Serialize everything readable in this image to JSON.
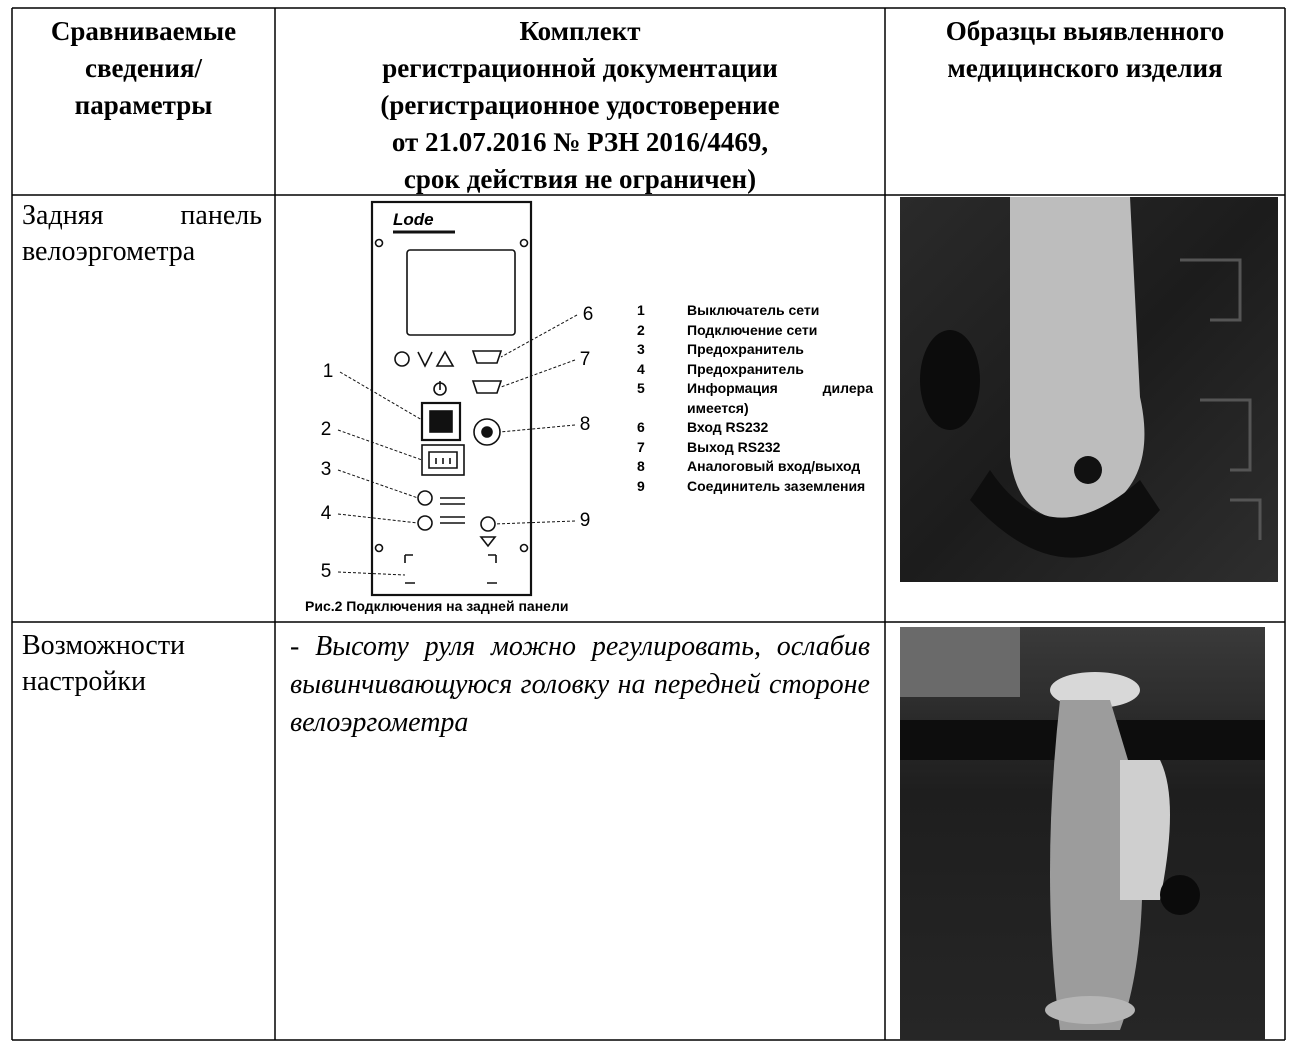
{
  "table": {
    "header": [
      [
        "Сравниваемые",
        "сведения/",
        "параметры"
      ],
      [
        "Комплект",
        "регистрационной документации",
        "(регистрационное удостоверение",
        "от 21.07.2016 № РЗН 2016/4469,",
        "срок действия не ограничен)"
      ],
      [
        "Образцы выявленного",
        "медицинского изделия"
      ]
    ],
    "rows": [
      {
        "parameter": "Задняя панель велоэргометра",
        "figure": {
          "logo": "Lode",
          "legend": [
            {
              "number": "1",
              "text": "Выключатель сети"
            },
            {
              "number": "2",
              "text": "Подключение сети"
            },
            {
              "number": "3",
              "text": "Предохранитель"
            },
            {
              "number": "4",
              "text": "Предохранитель"
            },
            {
              "number": "5",
              "text": "Информация дилера имеется)"
            },
            {
              "number": "6",
              "text": "Вход RS232"
            },
            {
              "number": "7",
              "text": "Выход RS232"
            },
            {
              "number": "8",
              "text": "Аналоговый вход/выход"
            },
            {
              "number": "9",
              "text": "Соединитель заземления"
            }
          ],
          "caption": "Рис.2 Подключения на задней панели"
        }
      },
      {
        "parameter": "Возможности настройки",
        "description": "- Высоту руля можно регулировать, ослабив вывинчивающуюся головку на передней стороне велоэргометра"
      }
    ]
  }
}
